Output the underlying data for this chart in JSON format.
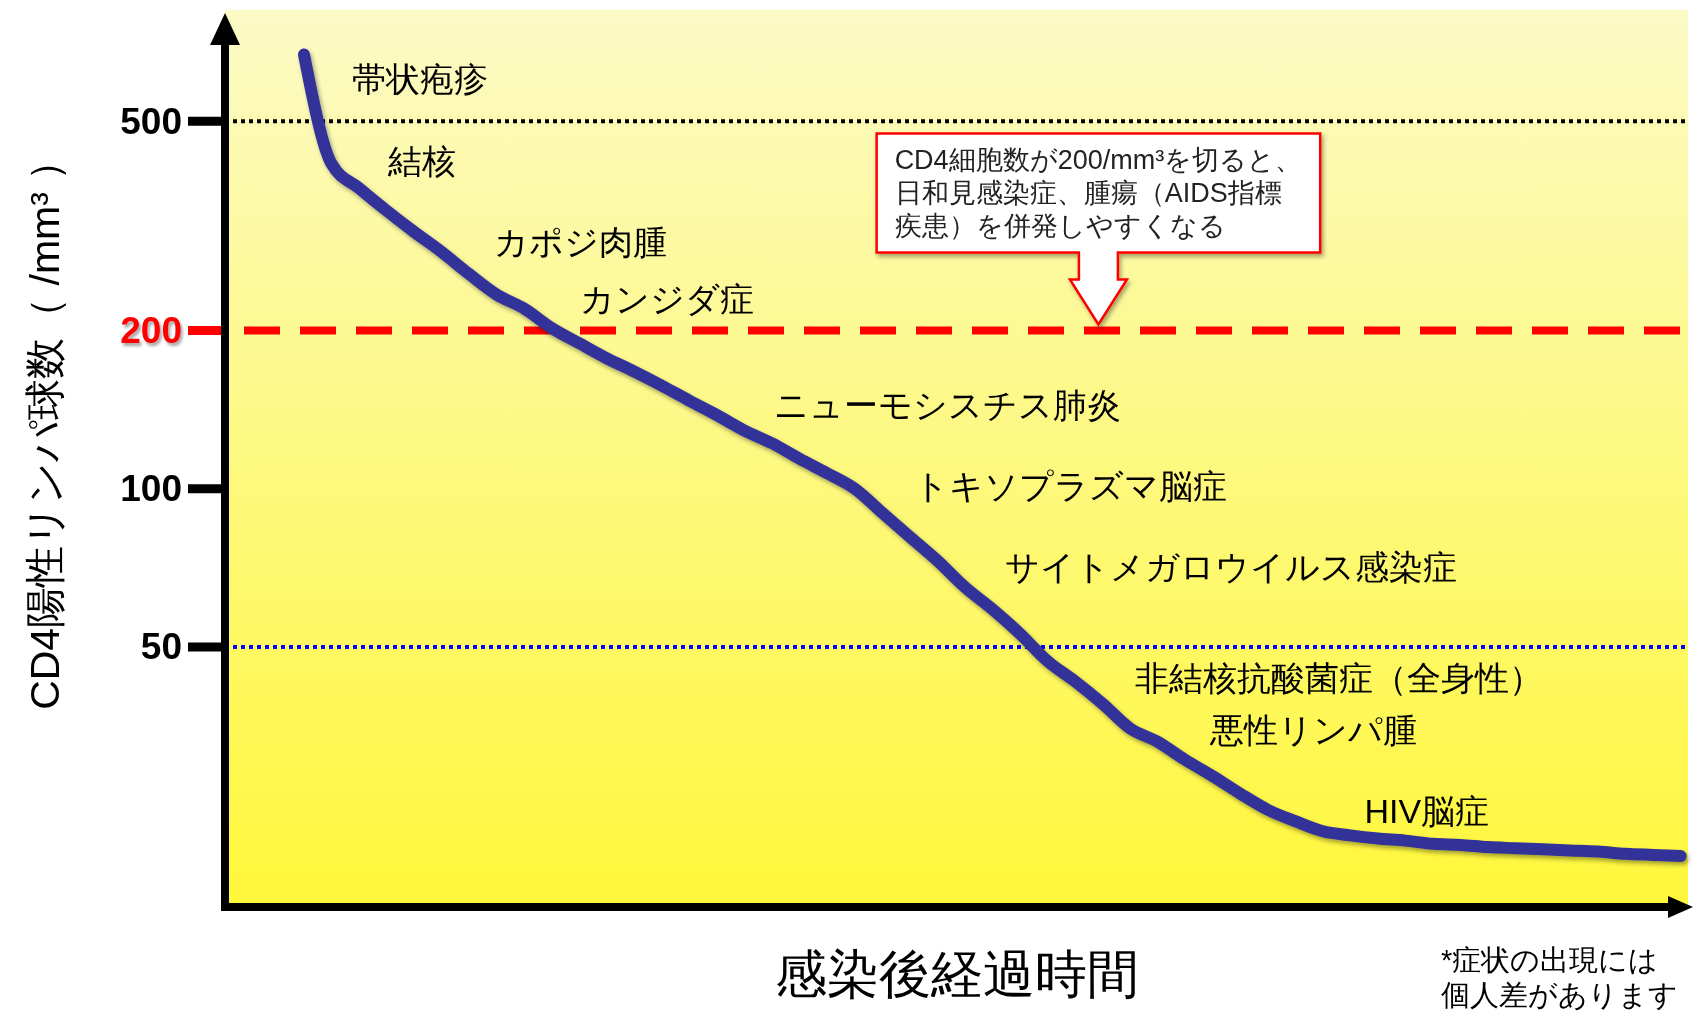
{
  "chart_data": {
    "type": "line",
    "xlabel": "感染後経過時間",
    "ylabel": "CD4陽性リンパ球数（ /mm³ ）",
    "categories": [
      null,
      null,
      null,
      null,
      null,
      null,
      null,
      null,
      null,
      null,
      null,
      null,
      null,
      null,
      null,
      null,
      null,
      null,
      null,
      null,
      null,
      null,
      null,
      null,
      null,
      null,
      null,
      null,
      null,
      null,
      null,
      null,
      null,
      null,
      null,
      null,
      null,
      null,
      null,
      null,
      null,
      null,
      null,
      null,
      null,
      null,
      null,
      null,
      null,
      null,
      null
    ],
    "series": [
      {
        "color": "#333399",
        "values": [
          670,
          415,
          373,
          338,
          308,
          282,
          256,
          234,
          220,
          202,
          189,
          177,
          167,
          157,
          147,
          138,
          129,
          122,
          114,
          107,
          100,
          90,
          81,
          73,
          65,
          59,
          53,
          47,
          43,
          39,
          35,
          33,
          30.5,
          28.4,
          26.3,
          24.5,
          23.3,
          22.3,
          21.9,
          21.6,
          21.4,
          21.1,
          21.0,
          20.8,
          20.7,
          20.6,
          20.5,
          20.4,
          20.2,
          20.1,
          20.0
        ]
      }
    ],
    "log": "y",
    "ylim": [
      16,
      800
    ],
    "yticks": [
      50,
      100,
      {
        "value": 200,
        "label": null
      },
      500
    ],
    "tick_labels": "y",
    "ref_lines": [
      {
        "axis": "y",
        "value": 500,
        "color": "#000000",
        "line_style": "dotted"
      },
      {
        "axis": "y",
        "value": 200,
        "color": "#ff0000",
        "line_style": "dashed",
        "label": "200"
      },
      {
        "axis": "y",
        "value": 50,
        "color": "#0000ff",
        "line_style": "dotted"
      }
    ],
    "annotations": [
      "CD4細胞数が200/mm³を切ると、日和見感染症、腫瘍（AIDS指標疾患）を併発しやすくなる",
      "帯状疱疹",
      "結核",
      "カポジ肉腫",
      "カンジダ症",
      "ニューモシスチス肺炎",
      "トキソプラズマ脳症",
      "サイトメガロウイルス感染症",
      "非結核抗酸菌症（全身性）",
      "悪性リンパ腫",
      "HIV脳症",
      "*症状の出現には個人差があります"
    ]
  }
}
